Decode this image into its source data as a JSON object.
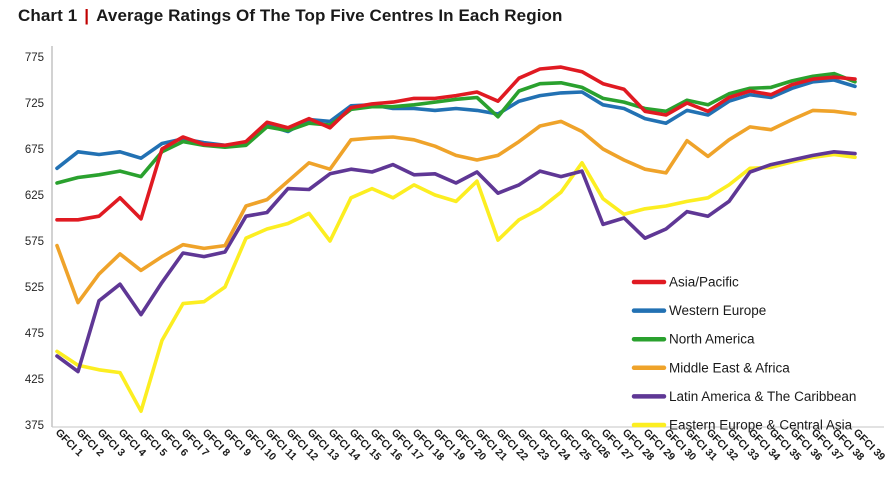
{
  "title": {
    "prefix": "Chart 1",
    "separator": "|",
    "separator_color": "#C00000",
    "text": "Average Ratings Of The Top Five Centres In Each Region"
  },
  "chart_data": {
    "type": "line",
    "title": "Chart 1 | Average Ratings Of The Top Five Centres In Each Region",
    "xlabel": "",
    "ylabel": "",
    "ylim": [
      375,
      775
    ],
    "ytick_step": 50,
    "grid": false,
    "legend_position": "inside-right",
    "x_label_rotation": 45,
    "categories": [
      "GFCI 1",
      "GFCI 2",
      "GFCI 3",
      "GFCI 4",
      "GFCI 5",
      "GFCI 6",
      "GFCI 7",
      "GFCI 8",
      "GFCI 9",
      "GFCI 10",
      "GFCI 11",
      "GFCI 12",
      "GFCI 13",
      "GFCI 14",
      "GFCI 15",
      "GFCI 16",
      "GFCI 17",
      "GFCI 18",
      "GFCI 19",
      "GFCI 20",
      "GFCI 21",
      "GFCI 22",
      "GFCI 23",
      "GFCI 24",
      "GFCI 25",
      "GFCI26",
      "GFCI 27",
      "GFCI 28",
      "GFCI 29",
      "GFCI 30",
      "GFCI 31",
      "GFCI 32",
      "GFCI 33",
      "GFCI 34",
      "GFCI 35",
      "GFCI 36",
      "GFCI 37",
      "GFCI 38",
      "GFCI 39"
    ],
    "series": [
      {
        "name": "Asia/Pacific",
        "color": "#E01A22",
        "values": [
          598,
          598,
          602,
          622,
          599,
          675,
          688,
          680,
          679,
          683,
          704,
          698,
          708,
          698,
          720,
          724,
          726,
          730,
          730,
          733,
          737,
          727,
          752,
          762,
          764,
          759,
          746,
          740,
          716,
          712,
          725,
          716,
          731,
          738,
          734,
          745,
          751,
          753,
          751
        ]
      },
      {
        "name": "Western Europe",
        "color": "#2271B3",
        "values": [
          654,
          672,
          669,
          672,
          665,
          681,
          686,
          682,
          679,
          680,
          701,
          694,
          707,
          705,
          722,
          723,
          719,
          719,
          717,
          719,
          717,
          713,
          727,
          733,
          736,
          737,
          723,
          719,
          708,
          703,
          717,
          712,
          727,
          734,
          731,
          741,
          748,
          750,
          743
        ]
      },
      {
        "name": "North America",
        "color": "#2AA12E",
        "values": [
          638,
          644,
          647,
          651,
          645,
          672,
          683,
          679,
          677,
          679,
          699,
          695,
          703,
          701,
          718,
          721,
          721,
          723,
          726,
          729,
          731,
          710,
          738,
          746,
          747,
          742,
          730,
          726,
          719,
          716,
          728,
          723,
          735,
          741,
          742,
          749,
          754,
          757,
          748
        ]
      },
      {
        "name": "Middle East & Africa",
        "color": "#EFA32A",
        "values": [
          570,
          508,
          539,
          561,
          543,
          558,
          571,
          567,
          570,
          613,
          620,
          640,
          660,
          653,
          685,
          687,
          688,
          685,
          678,
          668,
          663,
          668,
          683,
          700,
          705,
          694,
          675,
          663,
          653,
          649,
          684,
          667,
          685,
          699,
          696,
          707,
          717,
          716,
          713
        ]
      },
      {
        "name": "Latin America & The Caribbean",
        "color": "#5F3795",
        "values": [
          450,
          433,
          510,
          528,
          495,
          530,
          562,
          558,
          563,
          602,
          606,
          632,
          631,
          648,
          653,
          650,
          658,
          647,
          648,
          638,
          650,
          627,
          636,
          651,
          645,
          651,
          593,
          600,
          578,
          588,
          607,
          602,
          618,
          650,
          658,
          663,
          668,
          672,
          670
        ]
      },
      {
        "name": "Eastern Europe & Central Asia",
        "color": "#FCEE21",
        "values": [
          455,
          440,
          435,
          432,
          390,
          467,
          507,
          509,
          525,
          578,
          588,
          594,
          605,
          575,
          622,
          632,
          622,
          636,
          625,
          618,
          640,
          576,
          598,
          610,
          628,
          660,
          621,
          604,
          610,
          613,
          618,
          622,
          636,
          654,
          655,
          661,
          666,
          669,
          666
        ]
      }
    ]
  }
}
